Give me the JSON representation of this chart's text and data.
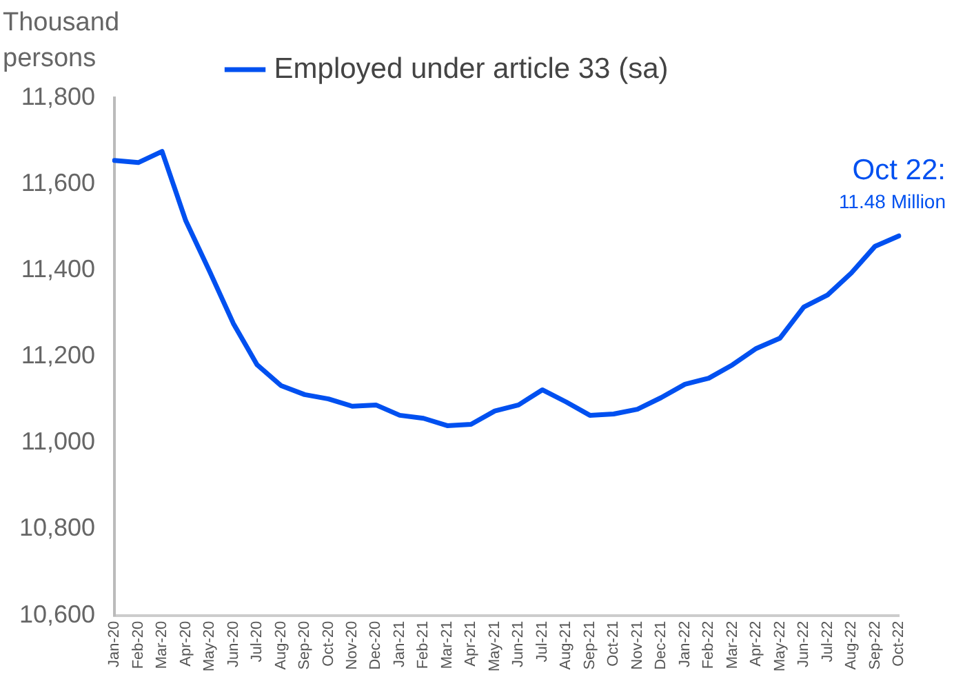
{
  "chart_data": {
    "type": "line",
    "ylabel": "Thousand persons",
    "categories": [
      "Jan-20",
      "Feb-20",
      "Mar-20",
      "Apr-20",
      "May-20",
      "Jun-20",
      "Jul-20",
      "Aug-20",
      "Sep-20",
      "Oct-20",
      "Nov-20",
      "Dec-20",
      "Jan-21",
      "Feb-21",
      "Mar-21",
      "Apr-21",
      "May-21",
      "Jun-21",
      "Jul-21",
      "Aug-21",
      "Sep-21",
      "Oct-21",
      "Nov-21",
      "Dec-21",
      "Jan-22",
      "Feb-22",
      "Mar-22",
      "Apr-22",
      "May-22",
      "Jun-22",
      "Jul-22",
      "Aug-22",
      "Sep-22",
      "Oct-22"
    ],
    "series": [
      {
        "name": "Employed under article 33 (sa)",
        "color": "#0050f0",
        "values": [
          11655,
          11650,
          11676,
          11515,
          11398,
          11277,
          11181,
          11133,
          11112,
          11102,
          11085,
          11088,
          11064,
          11057,
          11040,
          11043,
          11074,
          11088,
          11123,
          11095,
          11064,
          11067,
          11078,
          11105,
          11136,
          11150,
          11181,
          11219,
          11243,
          11315,
          11343,
          11394,
          11456,
          11480
        ]
      }
    ],
    "ylim": [
      10600,
      11800
    ],
    "yticks": [
      {
        "value": 10600,
        "label": "10,600"
      },
      {
        "value": 10800,
        "label": "10,800"
      },
      {
        "value": 11000,
        "label": "11,000"
      },
      {
        "value": 11200,
        "label": "11,200"
      },
      {
        "value": 11400,
        "label": "11,400"
      },
      {
        "value": 11600,
        "label": "11,600"
      },
      {
        "value": 11800,
        "label": "11,800"
      }
    ],
    "grid": false,
    "legend": "top",
    "marker": "none",
    "line_style": "solid",
    "annotations": [
      "Oct 22:",
      "11.48 Million"
    ]
  }
}
